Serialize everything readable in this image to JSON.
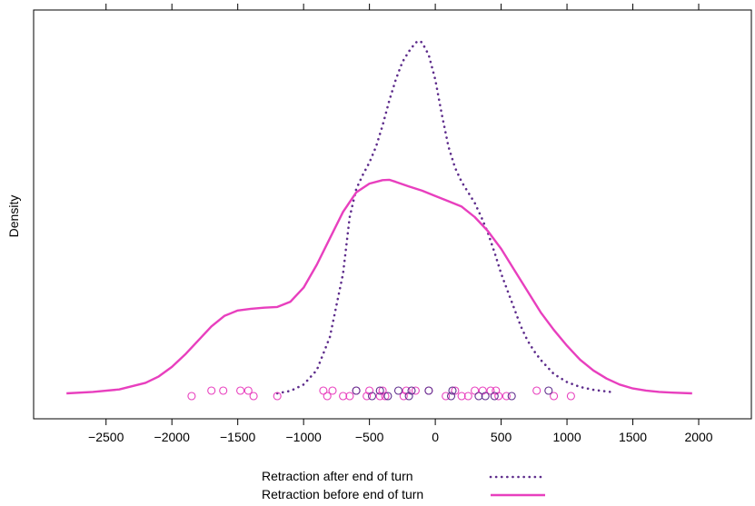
{
  "chart_data": {
    "type": "line",
    "title": "",
    "xlabel": "",
    "ylabel": "Density",
    "xlim": [
      -3050,
      2400
    ],
    "x_ticks": [
      -2500,
      -2000,
      -1500,
      -1000,
      -500,
      0,
      500,
      1000,
      1500,
      2000
    ],
    "x_tick_labels": [
      "−2500",
      "−2000",
      "−1500",
      "−1000",
      "−500",
      "0",
      "500",
      "1000",
      "1500",
      "2000"
    ],
    "ylim": [
      0,
      1
    ],
    "legend_position": "bottom-center",
    "series": [
      {
        "name": "Retraction after end of turn",
        "style": "dotted",
        "color": "#5e2d8c",
        "x": [
          -1200,
          -1100,
          -1000,
          -900,
          -800,
          -700,
          -650,
          -600,
          -550,
          -500,
          -450,
          -400,
          -350,
          -300,
          -250,
          -200,
          -150,
          -120,
          -100,
          -50,
          0,
          50,
          100,
          150,
          200,
          250,
          300,
          350,
          400,
          450,
          500,
          550,
          600,
          650,
          700,
          750,
          800,
          900,
          1000,
          1100,
          1200,
          1350
        ],
        "y": [
          0.0,
          0.007,
          0.025,
          0.066,
          0.16,
          0.34,
          0.5,
          0.58,
          0.62,
          0.655,
          0.7,
          0.76,
          0.83,
          0.89,
          0.94,
          0.97,
          0.995,
          1.0,
          0.995,
          0.96,
          0.89,
          0.79,
          0.7,
          0.64,
          0.6,
          0.57,
          0.54,
          0.5,
          0.455,
          0.4,
          0.34,
          0.29,
          0.24,
          0.19,
          0.15,
          0.12,
          0.095,
          0.055,
          0.032,
          0.018,
          0.01,
          0.003
        ]
      },
      {
        "name": "Retraction before end of turn",
        "style": "solid",
        "color": "#e83fbe",
        "x": [
          -2800,
          -2600,
          -2400,
          -2200,
          -2100,
          -2000,
          -1900,
          -1800,
          -1700,
          -1600,
          -1500,
          -1400,
          -1300,
          -1200,
          -1100,
          -1000,
          -900,
          -800,
          -700,
          -600,
          -500,
          -400,
          -350,
          -300,
          -200,
          -100,
          0,
          100,
          200,
          300,
          400,
          500,
          600,
          700,
          800,
          900,
          1000,
          1100,
          1200,
          1300,
          1400,
          1500,
          1600,
          1700,
          1800,
          1950
        ],
        "y": [
          0.0,
          0.004,
          0.011,
          0.03,
          0.048,
          0.075,
          0.11,
          0.15,
          0.19,
          0.22,
          0.235,
          0.24,
          0.243,
          0.245,
          0.26,
          0.3,
          0.365,
          0.44,
          0.515,
          0.57,
          0.595,
          0.605,
          0.606,
          0.6,
          0.587,
          0.575,
          0.56,
          0.545,
          0.53,
          0.5,
          0.46,
          0.41,
          0.35,
          0.29,
          0.23,
          0.18,
          0.135,
          0.095,
          0.065,
          0.042,
          0.025,
          0.014,
          0.008,
          0.004,
          0.002,
          0.0
        ]
      }
    ],
    "points": [
      {
        "group": "before",
        "x": -1850,
        "j": 0
      },
      {
        "group": "before",
        "x": -1700,
        "j": 1
      },
      {
        "group": "before",
        "x": -1610,
        "j": 1
      },
      {
        "group": "before",
        "x": -1480,
        "j": 1
      },
      {
        "group": "before",
        "x": -1420,
        "j": 1
      },
      {
        "group": "before",
        "x": -1380,
        "j": 0
      },
      {
        "group": "before",
        "x": -1200,
        "j": 0
      },
      {
        "group": "before",
        "x": -850,
        "j": 1
      },
      {
        "group": "before",
        "x": -820,
        "j": 0
      },
      {
        "group": "before",
        "x": -780,
        "j": 1
      },
      {
        "group": "before",
        "x": -700,
        "j": 0
      },
      {
        "group": "before",
        "x": -650,
        "j": 0
      },
      {
        "group": "before",
        "x": -600,
        "j": 1
      },
      {
        "group": "before",
        "x": -520,
        "j": 0
      },
      {
        "group": "before",
        "x": -500,
        "j": 1
      },
      {
        "group": "before",
        "x": -420,
        "j": 0
      },
      {
        "group": "before",
        "x": -400,
        "j": 1
      },
      {
        "group": "before",
        "x": -380,
        "j": 0
      },
      {
        "group": "before",
        "x": -240,
        "j": 0
      },
      {
        "group": "before",
        "x": -220,
        "j": 1
      },
      {
        "group": "before",
        "x": -150,
        "j": 1
      },
      {
        "group": "before",
        "x": -50,
        "j": 1
      },
      {
        "group": "before",
        "x": 80,
        "j": 0
      },
      {
        "group": "before",
        "x": 150,
        "j": 1
      },
      {
        "group": "before",
        "x": 200,
        "j": 0
      },
      {
        "group": "before",
        "x": 250,
        "j": 0
      },
      {
        "group": "before",
        "x": 300,
        "j": 1
      },
      {
        "group": "before",
        "x": 360,
        "j": 1
      },
      {
        "group": "before",
        "x": 420,
        "j": 1
      },
      {
        "group": "before",
        "x": 460,
        "j": 1
      },
      {
        "group": "before",
        "x": 480,
        "j": 0
      },
      {
        "group": "before",
        "x": 540,
        "j": 0
      },
      {
        "group": "before",
        "x": 770,
        "j": 1
      },
      {
        "group": "before",
        "x": 900,
        "j": 0
      },
      {
        "group": "before",
        "x": 1030,
        "j": 0
      },
      {
        "group": "after",
        "x": -600,
        "j": 1
      },
      {
        "group": "after",
        "x": -480,
        "j": 0
      },
      {
        "group": "after",
        "x": -420,
        "j": 1
      },
      {
        "group": "after",
        "x": -360,
        "j": 0
      },
      {
        "group": "after",
        "x": -280,
        "j": 1
      },
      {
        "group": "after",
        "x": -200,
        "j": 0
      },
      {
        "group": "after",
        "x": -180,
        "j": 1
      },
      {
        "group": "after",
        "x": -50,
        "j": 1
      },
      {
        "group": "after",
        "x": 120,
        "j": 0
      },
      {
        "group": "after",
        "x": 130,
        "j": 1
      },
      {
        "group": "after",
        "x": 330,
        "j": 0
      },
      {
        "group": "after",
        "x": 380,
        "j": 0
      },
      {
        "group": "after",
        "x": 450,
        "j": 0
      },
      {
        "group": "after",
        "x": 580,
        "j": 0
      },
      {
        "group": "after",
        "x": 860,
        "j": 1
      }
    ]
  }
}
